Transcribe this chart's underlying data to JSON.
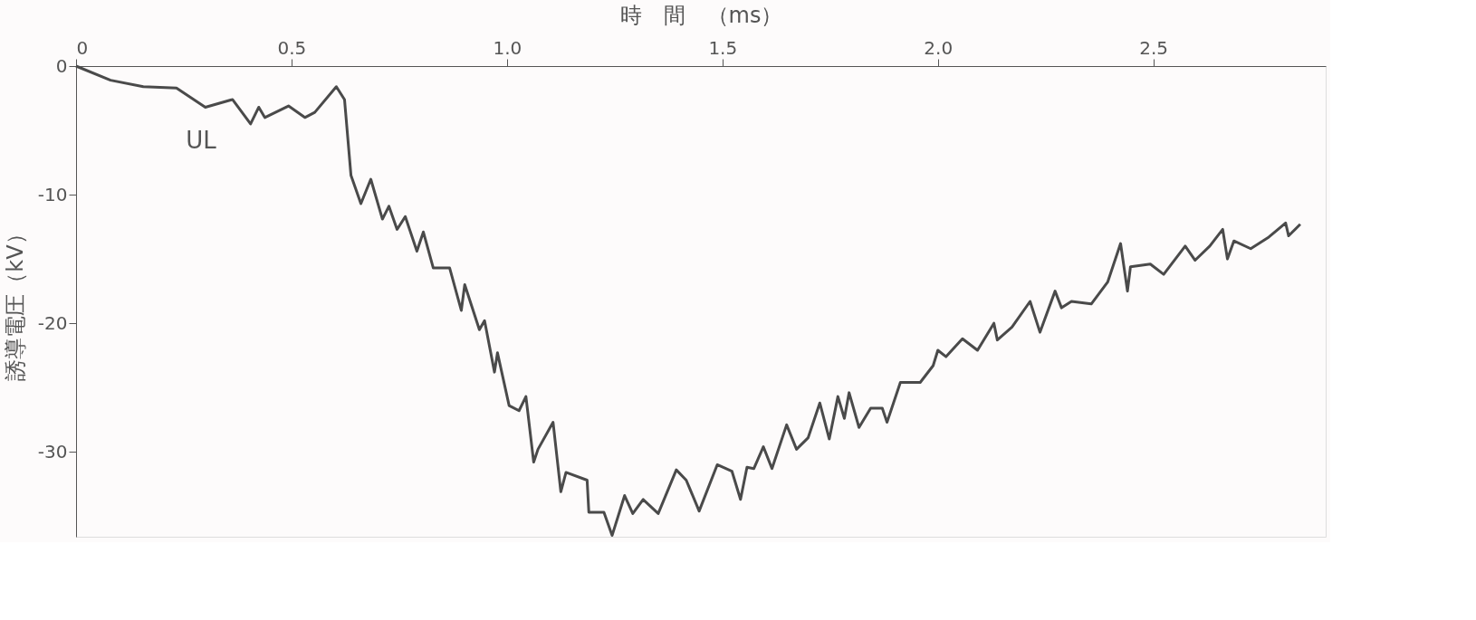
{
  "chart_data": {
    "type": "line",
    "xlabel": "時　間　（ms）",
    "ylabel": "誘導電圧（kV）",
    "xlim": [
      0,
      2.9
    ],
    "ylim": [
      -36.6,
      0
    ],
    "xticks": [
      0,
      0.5,
      {
        "value": 1,
        "label": "1.0"
      },
      1.5,
      {
        "value": 2,
        "label": "2.0"
      },
      2.5
    ],
    "yticks": [
      0,
      -10,
      -20,
      -30
    ],
    "grid": false,
    "marker": "none",
    "line_style": "solid",
    "annotations": [
      "UL"
    ],
    "series": [
      {
        "color": "#4a4a4a",
        "x": [
          0.0,
          0.08,
          0.156,
          0.233,
          0.3,
          0.363,
          0.405,
          0.424,
          0.438,
          0.493,
          0.531,
          0.554,
          0.604,
          0.623,
          0.638,
          0.661,
          0.684,
          0.711,
          0.726,
          0.745,
          0.764,
          0.791,
          0.806,
          0.829,
          0.867,
          0.894,
          0.902,
          0.936,
          0.948,
          0.971,
          0.978,
          1.005,
          1.028,
          1.044,
          1.062,
          1.072,
          1.107,
          1.125,
          1.137,
          1.186,
          1.19,
          1.225,
          1.244,
          1.273,
          1.292,
          1.316,
          1.351,
          1.393,
          1.416,
          1.446,
          1.488,
          1.522,
          1.542,
          1.557,
          1.573,
          1.595,
          1.615,
          1.649,
          1.672,
          1.699,
          1.726,
          1.748,
          1.768,
          1.783,
          1.794,
          1.817,
          1.844,
          1.871,
          1.882,
          1.913,
          1.959,
          1.989,
          2.0,
          2.019,
          2.057,
          2.092,
          2.13,
          2.138,
          2.172,
          2.214,
          2.237,
          2.272,
          2.287,
          2.31,
          2.356,
          2.394,
          2.424,
          2.44,
          2.447,
          2.493,
          2.524,
          2.574,
          2.597,
          2.631,
          2.661,
          2.672,
          2.687,
          2.726,
          2.768,
          2.807,
          2.814,
          2.841
        ],
        "values": [
          0.0,
          -1.1,
          -1.6,
          -1.7,
          -3.2,
          -2.6,
          -4.5,
          -3.2,
          -4.0,
          -3.1,
          -4.0,
          -3.6,
          -1.6,
          -2.6,
          -8.5,
          -10.7,
          -8.8,
          -11.9,
          -10.9,
          -12.7,
          -11.7,
          -14.4,
          -12.9,
          -15.7,
          -15.7,
          -19.0,
          -17.0,
          -20.5,
          -19.8,
          -23.8,
          -22.3,
          -26.4,
          -26.8,
          -25.7,
          -30.8,
          -29.8,
          -27.7,
          -33.1,
          -31.6,
          -32.2,
          -34.7,
          -34.7,
          -36.5,
          -33.4,
          -34.8,
          -33.7,
          -34.8,
          -31.4,
          -32.2,
          -34.6,
          -31.0,
          -31.5,
          -33.7,
          -31.2,
          -31.3,
          -29.6,
          -31.3,
          -27.9,
          -29.8,
          -28.9,
          -26.2,
          -29.0,
          -25.7,
          -27.4,
          -25.4,
          -28.1,
          -26.6,
          -26.6,
          -27.7,
          -24.6,
          -24.6,
          -23.3,
          -22.1,
          -22.6,
          -21.2,
          -22.1,
          -20.0,
          -21.3,
          -20.3,
          -18.3,
          -20.7,
          -17.5,
          -18.8,
          -18.3,
          -18.5,
          -16.8,
          -13.8,
          -17.5,
          -15.6,
          -15.4,
          -16.2,
          -14.0,
          -15.1,
          -14.0,
          -12.7,
          -15.0,
          -13.6,
          -14.2,
          -13.3,
          -12.2,
          -13.2,
          -12.3
        ]
      }
    ]
  }
}
